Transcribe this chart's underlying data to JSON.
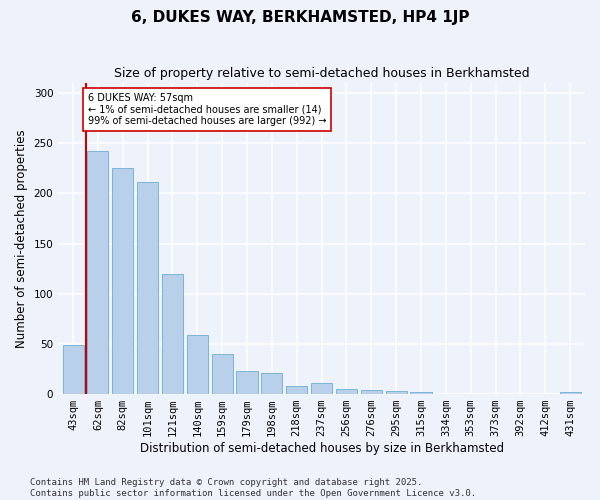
{
  "title": "6, DUKES WAY, BERKHAMSTED, HP4 1JP",
  "subtitle": "Size of property relative to semi-detached houses in Berkhamsted",
  "xlabel": "Distribution of semi-detached houses by size in Berkhamsted",
  "ylabel": "Number of semi-detached properties",
  "categories": [
    "43sqm",
    "62sqm",
    "82sqm",
    "101sqm",
    "121sqm",
    "140sqm",
    "159sqm",
    "179sqm",
    "198sqm",
    "218sqm",
    "237sqm",
    "256sqm",
    "276sqm",
    "295sqm",
    "315sqm",
    "334sqm",
    "353sqm",
    "373sqm",
    "392sqm",
    "412sqm",
    "431sqm"
  ],
  "values": [
    49,
    242,
    225,
    211,
    120,
    59,
    40,
    23,
    21,
    8,
    11,
    5,
    4,
    3,
    2,
    0,
    0,
    0,
    0,
    0,
    2
  ],
  "bar_color": "#b8d0ea",
  "bar_edge_color": "#6aaed6",
  "marker_label": "6 DUKES WAY: 57sqm\n← 1% of semi-detached houses are smaller (14)\n99% of semi-detached houses are larger (992) →",
  "marker_line_color": "#cc0000",
  "annotation_box_color": "#ffffff",
  "annotation_box_edge_color": "#cc0000",
  "ylim": [
    0,
    310
  ],
  "yticks": [
    0,
    50,
    100,
    150,
    200,
    250,
    300
  ],
  "footer": "Contains HM Land Registry data © Crown copyright and database right 2025.\nContains public sector information licensed under the Open Government Licence v3.0.",
  "background_color": "#eef2fb",
  "grid_color": "#ffffff",
  "title_fontsize": 11,
  "subtitle_fontsize": 9,
  "axis_label_fontsize": 8.5,
  "tick_fontsize": 7.5,
  "footer_fontsize": 6.5
}
